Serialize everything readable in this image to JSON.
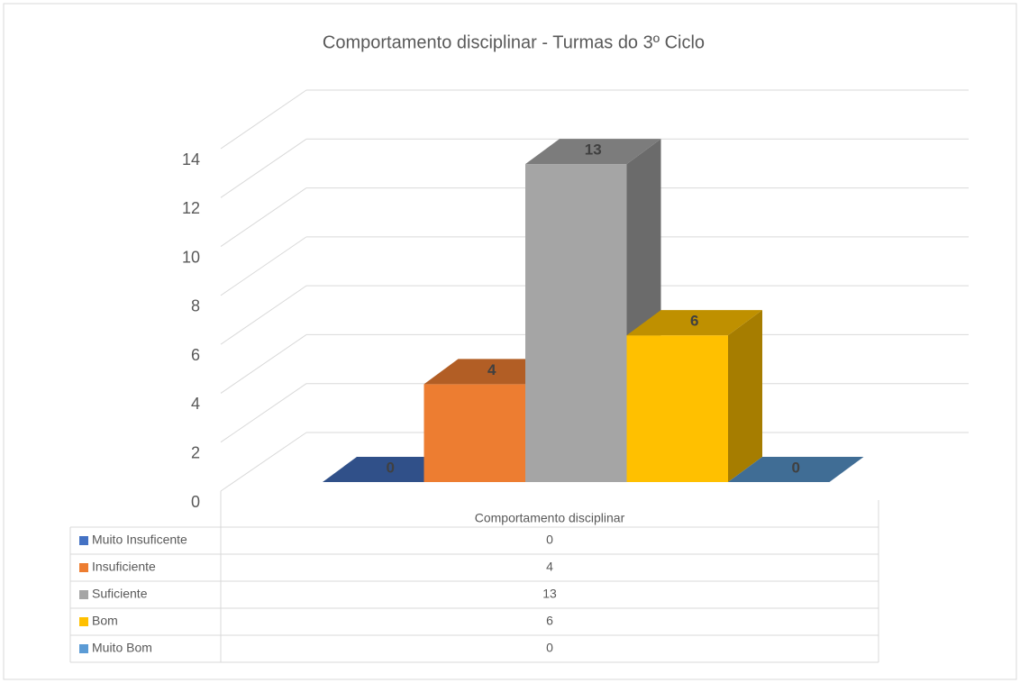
{
  "chart_data": {
    "type": "bar3d",
    "title": "Comportamento disciplinar - Turmas do 3º Ciclo",
    "categories": [
      "Comportamento disciplinar"
    ],
    "series": [
      {
        "name": "Muito Insuficente",
        "color": "#4472c4",
        "values": [
          0
        ]
      },
      {
        "name": "Insuficiente",
        "color": "#ed7d31",
        "values": [
          4
        ]
      },
      {
        "name": "Suficiente",
        "color": "#a5a5a5",
        "values": [
          13
        ]
      },
      {
        "name": "Bom",
        "color": "#ffc000",
        "values": [
          6
        ]
      },
      {
        "name": "Muito Bom",
        "color": "#5b9bd5",
        "values": [
          0
        ]
      }
    ],
    "ylim": [
      0,
      14
    ],
    "yticks": [
      0,
      2,
      4,
      6,
      8,
      10,
      12,
      14
    ],
    "grid": true,
    "data_table": true
  }
}
